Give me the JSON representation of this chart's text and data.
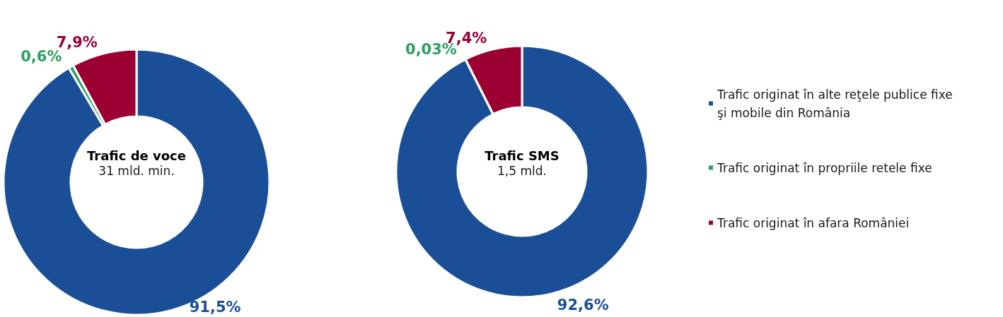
{
  "chart_data": [
    {
      "type": "donut",
      "title": "Trafic de voce",
      "subtitle": "31 mld. min.",
      "categories": [
        null,
        null,
        null
      ],
      "values": [
        91.5,
        0.6,
        7.9
      ],
      "colors": [
        "#1a4f98",
        "#2ca05f",
        "#9c0033"
      ],
      "value_labels": [
        "91,5%",
        "0,6%",
        "7,9%"
      ]
    },
    {
      "type": "donut",
      "title": "Trafic SMS",
      "subtitle": "1,5 mld.",
      "categories": [
        "Trafic originat în alte reţele publice fixe şi mobile din România",
        "Trafic originat în propriile retele fixe",
        "Trafic originat în afara României"
      ],
      "values": [
        92.6,
        0.03,
        7.4
      ],
      "colors": [
        "#1a4f98",
        "#2ca05f",
        "#9c0033"
      ],
      "value_labels": [
        "92,6%",
        "0,03%",
        "7,4%"
      ],
      "legend": "right"
    }
  ]
}
